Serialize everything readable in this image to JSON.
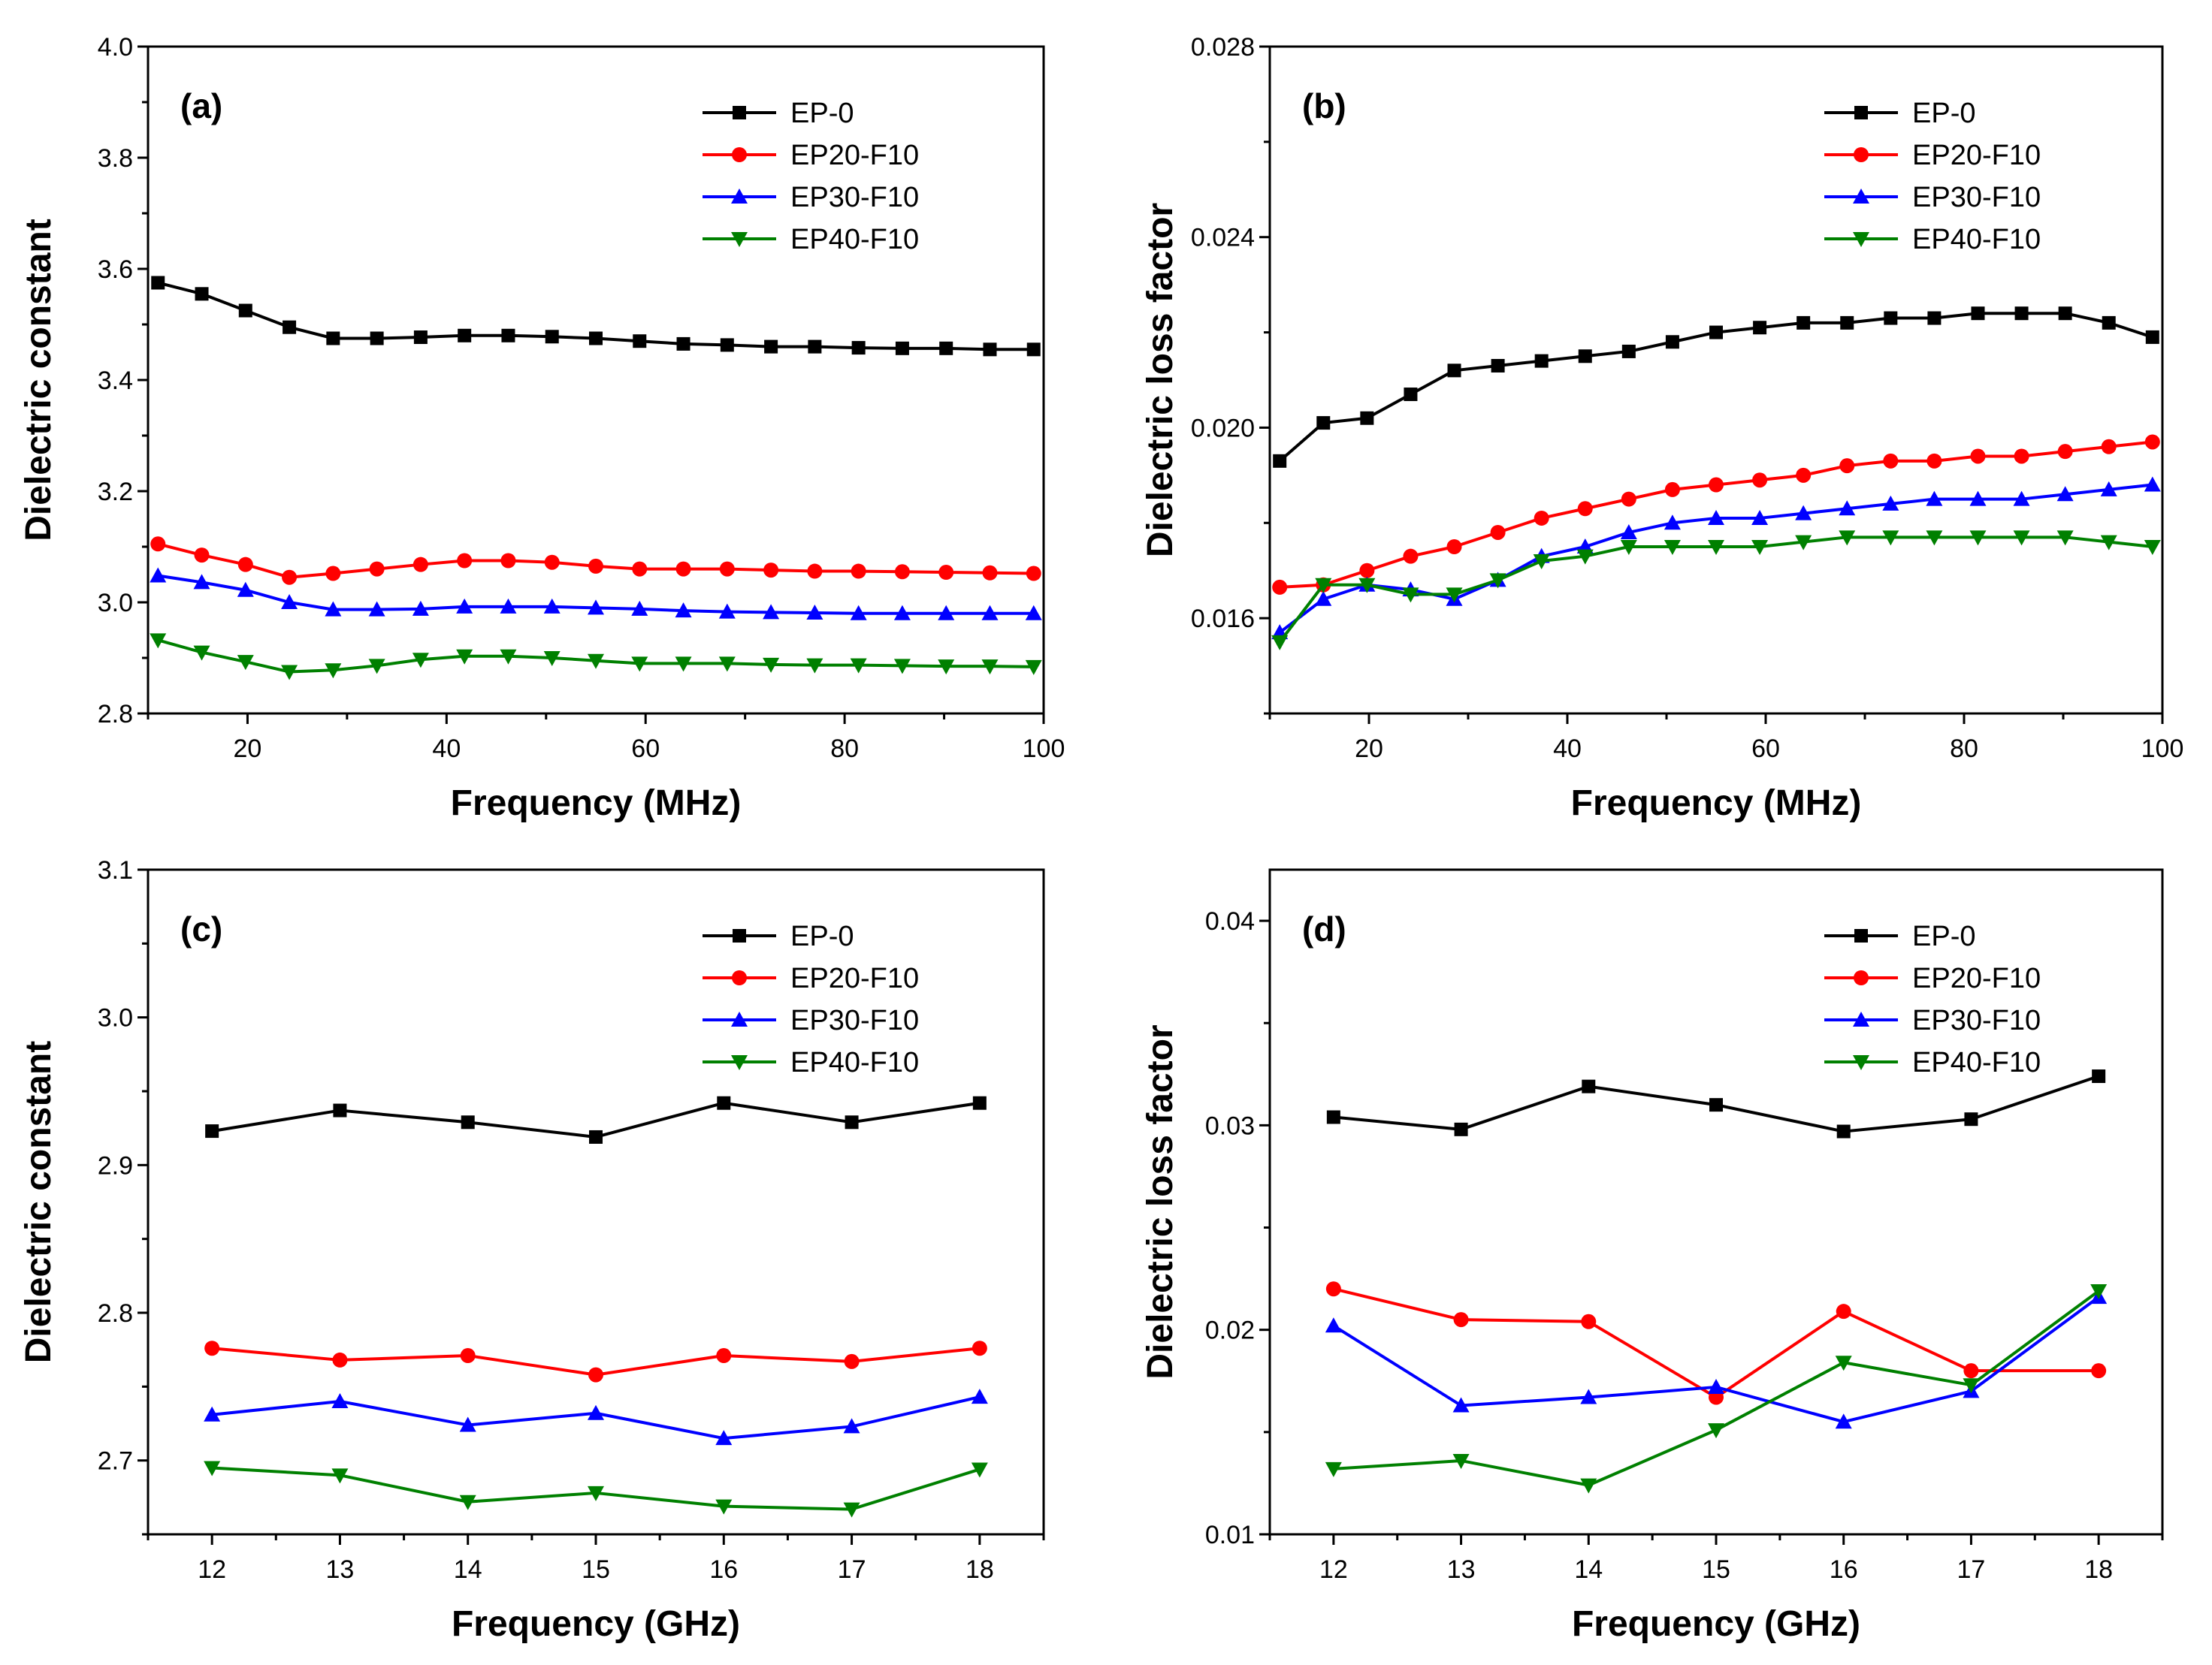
{
  "chart_data": [
    {
      "type": "line",
      "panel_label": "(a)",
      "xlabel": "Frequency (MHz)",
      "ylabel": "Dielectric constant",
      "xlim": [
        10,
        100
      ],
      "ylim": [
        2.8,
        4.0
      ],
      "xticks": [
        20,
        40,
        60,
        80,
        100
      ],
      "xtick_labels": [
        "20",
        "40",
        "60",
        "80",
        "100"
      ],
      "xminor": [
        10,
        30,
        50,
        70,
        90
      ],
      "yticks": [
        2.8,
        3.0,
        3.2,
        3.4,
        3.6,
        3.8,
        4.0
      ],
      "ytick_labels": [
        "2.8",
        "3.0",
        "3.2",
        "3.4",
        "3.6",
        "3.8",
        "4.0"
      ],
      "yminor": [
        2.9,
        3.1,
        3.3,
        3.5,
        3.7,
        3.9
      ],
      "legend_position": "top-right",
      "x": [
        11,
        15.4,
        19.8,
        24.2,
        28.6,
        33,
        37.4,
        41.8,
        46.2,
        50.6,
        55,
        59.4,
        63.8,
        68.2,
        72.6,
        77,
        81.4,
        85.8,
        90.2,
        94.6,
        99
      ],
      "series": [
        {
          "name": "EP-0",
          "color": "#000000",
          "marker": "square",
          "values": [
            3.575,
            3.555,
            3.525,
            3.495,
            3.475,
            3.475,
            3.477,
            3.48,
            3.48,
            3.478,
            3.475,
            3.47,
            3.465,
            3.463,
            3.46,
            3.46,
            3.458,
            3.457,
            3.457,
            3.455,
            3.455
          ]
        },
        {
          "name": "EP20-F10",
          "color": "#ff0000",
          "marker": "circle",
          "values": [
            3.105,
            3.085,
            3.068,
            3.045,
            3.052,
            3.06,
            3.068,
            3.075,
            3.075,
            3.072,
            3.065,
            3.06,
            3.06,
            3.06,
            3.058,
            3.056,
            3.056,
            3.055,
            3.054,
            3.053,
            3.052
          ]
        },
        {
          "name": "EP30-F10",
          "color": "#0000ff",
          "marker": "triangle-up",
          "values": [
            3.048,
            3.036,
            3.022,
            3.0,
            2.987,
            2.987,
            2.988,
            2.992,
            2.992,
            2.992,
            2.99,
            2.988,
            2.985,
            2.983,
            2.982,
            2.981,
            2.98,
            2.98,
            2.98,
            2.98,
            2.98
          ]
        },
        {
          "name": "EP40-F10",
          "color": "#008000",
          "marker": "triangle-down",
          "values": [
            2.932,
            2.91,
            2.893,
            2.875,
            2.878,
            2.886,
            2.897,
            2.903,
            2.903,
            2.9,
            2.895,
            2.89,
            2.89,
            2.89,
            2.888,
            2.887,
            2.887,
            2.886,
            2.885,
            2.885,
            2.884
          ]
        }
      ]
    },
    {
      "type": "line",
      "panel_label": "(b)",
      "xlabel": "Frequency (MHz)",
      "ylabel": "Dielectric loss factor",
      "xlim": [
        10,
        100
      ],
      "ylim": [
        0.014,
        0.028
      ],
      "xticks": [
        20,
        40,
        60,
        80,
        100
      ],
      "xtick_labels": [
        "20",
        "40",
        "60",
        "80",
        "100"
      ],
      "xminor": [
        10,
        30,
        50,
        70,
        90
      ],
      "yticks": [
        0.016,
        0.02,
        0.024,
        0.028
      ],
      "ytick_labels": [
        "0.016",
        "0.020",
        "0.024",
        "0.028"
      ],
      "yminor": [
        0.014,
        0.018,
        0.022,
        0.026
      ],
      "legend_position": "top-right",
      "x": [
        11,
        15.4,
        19.8,
        24.2,
        28.6,
        33,
        37.4,
        41.8,
        46.2,
        50.6,
        55,
        59.4,
        63.8,
        68.2,
        72.6,
        77,
        81.4,
        85.8,
        90.2,
        94.6,
        99
      ],
      "series": [
        {
          "name": "EP-0",
          "color": "#000000",
          "marker": "square",
          "values": [
            0.0193,
            0.0201,
            0.0202,
            0.0207,
            0.0212,
            0.0213,
            0.0214,
            0.0215,
            0.0216,
            0.0218,
            0.022,
            0.0221,
            0.0222,
            0.0222,
            0.0223,
            0.0223,
            0.0224,
            0.0224,
            0.0224,
            0.0222,
            0.0219
          ]
        },
        {
          "name": "EP20-F10",
          "color": "#ff0000",
          "marker": "circle",
          "values": [
            0.01665,
            0.0167,
            0.017,
            0.0173,
            0.0175,
            0.0178,
            0.0181,
            0.0183,
            0.0185,
            0.0187,
            0.0188,
            0.0189,
            0.019,
            0.0192,
            0.0193,
            0.0193,
            0.0194,
            0.0194,
            0.0195,
            0.0196,
            0.0197
          ]
        },
        {
          "name": "EP30-F10",
          "color": "#0000ff",
          "marker": "triangle-up",
          "values": [
            0.0157,
            0.0164,
            0.0167,
            0.0166,
            0.0164,
            0.0168,
            0.0173,
            0.0175,
            0.0178,
            0.018,
            0.0181,
            0.0181,
            0.0182,
            0.0183,
            0.0184,
            0.0185,
            0.0185,
            0.0185,
            0.0186,
            0.0187,
            0.0188
          ]
        },
        {
          "name": "EP40-F10",
          "color": "#008000",
          "marker": "triangle-down",
          "values": [
            0.0155,
            0.0167,
            0.0167,
            0.0165,
            0.0165,
            0.0168,
            0.0172,
            0.0173,
            0.0175,
            0.0175,
            0.0175,
            0.0175,
            0.0176,
            0.0177,
            0.0177,
            0.0177,
            0.0177,
            0.0177,
            0.0177,
            0.0176,
            0.0175
          ]
        }
      ]
    },
    {
      "type": "line",
      "panel_label": "(c)",
      "xlabel": "Frequency (GHz)",
      "ylabel": "Dielectric constant",
      "xlim": [
        11.5,
        18.5
      ],
      "ylim": [
        2.65,
        3.1
      ],
      "xticks": [
        12,
        13,
        14,
        15,
        16,
        17,
        18
      ],
      "xtick_labels": [
        "12",
        "13",
        "14",
        "15",
        "16",
        "17",
        "18"
      ],
      "xminor": [
        11.5,
        12.5,
        13.5,
        14.5,
        15.5,
        16.5,
        17.5,
        18.5
      ],
      "yticks": [
        2.7,
        2.8,
        2.9,
        3.0,
        3.1
      ],
      "ytick_labels": [
        "2.7",
        "2.8",
        "2.9",
        "3.0",
        "3.1"
      ],
      "yminor": [
        2.65,
        2.75,
        2.85,
        2.95,
        3.05
      ],
      "legend_position": "top-right",
      "x": [
        12,
        13,
        14,
        15,
        16,
        17,
        18
      ],
      "series": [
        {
          "name": "EP-0",
          "color": "#000000",
          "marker": "square",
          "values": [
            2.923,
            2.937,
            2.929,
            2.919,
            2.942,
            2.929,
            2.942
          ]
        },
        {
          "name": "EP20-F10",
          "color": "#ff0000",
          "marker": "circle",
          "values": [
            2.776,
            2.768,
            2.771,
            2.758,
            2.771,
            2.767,
            2.776
          ]
        },
        {
          "name": "EP30-F10",
          "color": "#0000ff",
          "marker": "triangle-up",
          "values": [
            2.731,
            2.74,
            2.724,
            2.732,
            2.715,
            2.723,
            2.743
          ]
        },
        {
          "name": "EP40-F10",
          "color": "#008000",
          "marker": "triangle-down",
          "values": [
            2.695,
            2.69,
            2.672,
            2.678,
            2.669,
            2.667,
            2.694
          ]
        }
      ]
    },
    {
      "type": "line",
      "panel_label": "(d)",
      "xlabel": "Frequency (GHz)",
      "ylabel": "Dielectric loss factor",
      "xlim": [
        11.5,
        18.5
      ],
      "ylim": [
        0.01,
        0.0425
      ],
      "xticks": [
        12,
        13,
        14,
        15,
        16,
        17,
        18
      ],
      "xtick_labels": [
        "12",
        "13",
        "14",
        "15",
        "16",
        "17",
        "18"
      ],
      "xminor": [
        11.5,
        12.5,
        13.5,
        14.5,
        15.5,
        16.5,
        17.5,
        18.5
      ],
      "yticks": [
        0.01,
        0.02,
        0.03,
        0.04
      ],
      "ytick_labels": [
        "0.01",
        "0.02",
        "0.03",
        "0.04"
      ],
      "yminor": [
        0.015,
        0.025,
        0.035
      ],
      "legend_position": "top-right",
      "x": [
        12,
        13,
        14,
        15,
        16,
        17,
        18
      ],
      "series": [
        {
          "name": "EP-0",
          "color": "#000000",
          "marker": "square",
          "values": [
            0.0304,
            0.0298,
            0.0319,
            0.031,
            0.0297,
            0.0303,
            0.0324
          ]
        },
        {
          "name": "EP20-F10",
          "color": "#ff0000",
          "marker": "circle",
          "values": [
            0.022,
            0.0205,
            0.0204,
            0.0167,
            0.0209,
            0.018,
            0.018
          ]
        },
        {
          "name": "EP30-F10",
          "color": "#0000ff",
          "marker": "triangle-up",
          "values": [
            0.0202,
            0.0163,
            0.0167,
            0.0172,
            0.0155,
            0.017,
            0.0216
          ]
        },
        {
          "name": "EP40-F10",
          "color": "#008000",
          "marker": "triangle-down",
          "values": [
            0.0132,
            0.0136,
            0.0124,
            0.0151,
            0.0184,
            0.0173,
            0.0219
          ]
        }
      ]
    }
  ]
}
